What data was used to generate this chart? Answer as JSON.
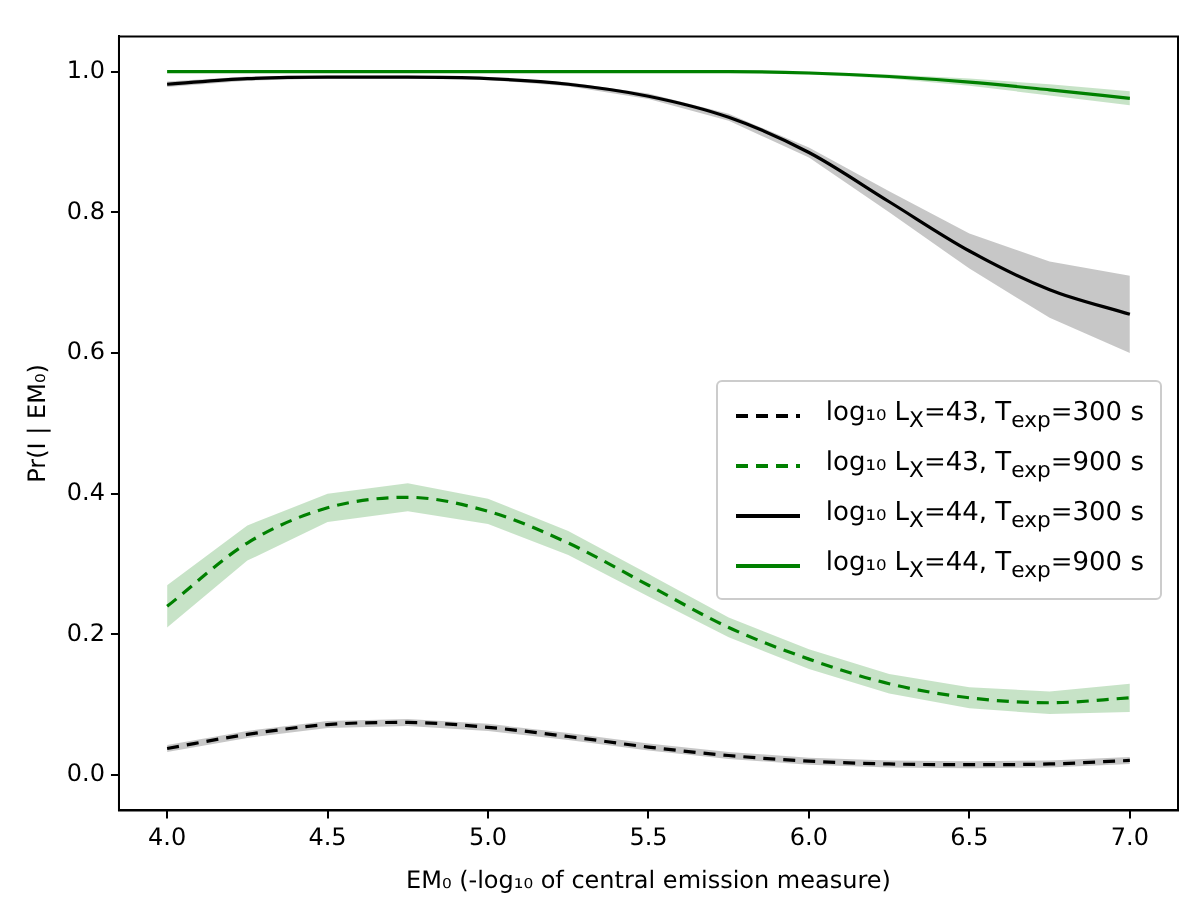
{
  "chart_data": {
    "type": "line",
    "xlabel": "EM₀ (-log₁₀ of central emission measure)",
    "ylabel": "Pr(I | EM₀)",
    "x": [
      4.0,
      4.25,
      4.5,
      4.75,
      5.0,
      5.25,
      5.5,
      5.75,
      6.0,
      6.25,
      6.5,
      6.75,
      7.0
    ],
    "series": [
      {
        "name": "log₁₀ L$_{X}$=43, T$_{exp}$=300 s",
        "color": "#000000",
        "line_style": "dashed",
        "values": [
          0.038,
          0.058,
          0.072,
          0.075,
          0.068,
          0.055,
          0.04,
          0.028,
          0.02,
          0.016,
          0.015,
          0.016,
          0.021
        ],
        "lower": [
          0.033,
          0.053,
          0.067,
          0.07,
          0.063,
          0.05,
          0.035,
          0.023,
          0.015,
          0.011,
          0.01,
          0.011,
          0.016
        ],
        "upper": [
          0.043,
          0.063,
          0.077,
          0.08,
          0.073,
          0.06,
          0.045,
          0.033,
          0.025,
          0.021,
          0.02,
          0.021,
          0.026
        ]
      },
      {
        "name": "log₁₀ L$_{X}$=43, T$_{exp}$=900 s",
        "color": "#008000",
        "line_style": "dashed",
        "values": [
          0.24,
          0.33,
          0.38,
          0.395,
          0.375,
          0.33,
          0.27,
          0.21,
          0.165,
          0.13,
          0.11,
          0.103,
          0.11
        ],
        "lower": [
          0.21,
          0.305,
          0.36,
          0.375,
          0.357,
          0.313,
          0.254,
          0.196,
          0.151,
          0.116,
          0.095,
          0.087,
          0.09
        ],
        "upper": [
          0.27,
          0.355,
          0.4,
          0.415,
          0.393,
          0.347,
          0.286,
          0.224,
          0.179,
          0.144,
          0.125,
          0.119,
          0.13
        ]
      },
      {
        "name": "log₁₀ L$_{X}$=44, T$_{exp}$=300 s",
        "color": "#000000",
        "line_style": "solid",
        "values": [
          0.982,
          0.99,
          0.992,
          0.992,
          0.99,
          0.982,
          0.965,
          0.935,
          0.885,
          0.815,
          0.745,
          0.69,
          0.655
        ],
        "lower": [
          0.978,
          0.987,
          0.99,
          0.99,
          0.988,
          0.979,
          0.961,
          0.93,
          0.878,
          0.8,
          0.72,
          0.65,
          0.6
        ],
        "upper": [
          0.986,
          0.993,
          0.994,
          0.994,
          0.992,
          0.985,
          0.969,
          0.94,
          0.892,
          0.83,
          0.77,
          0.73,
          0.71
        ]
      },
      {
        "name": "log₁₀ L$_{X}$=44, T$_{exp}$=900 s",
        "color": "#008000",
        "line_style": "solid",
        "values": [
          1.0,
          1.0,
          1.0,
          1.0,
          1.0,
          1.0,
          1.0,
          1.0,
          0.998,
          0.993,
          0.985,
          0.974,
          0.962
        ],
        "lower": [
          0.999,
          0.999,
          0.999,
          0.999,
          0.999,
          0.999,
          0.999,
          0.998,
          0.996,
          0.99,
          0.98,
          0.966,
          0.952
        ],
        "upper": [
          1.0,
          1.0,
          1.0,
          1.0,
          1.0,
          1.0,
          1.0,
          1.0,
          1.0,
          0.996,
          0.99,
          0.982,
          0.972
        ]
      }
    ],
    "xlim": [
      3.85,
      7.15
    ],
    "ylim": [
      -0.05,
      1.05
    ],
    "xticks": [
      {
        "value": 4,
        "label": "4.0"
      },
      {
        "value": 4.5,
        "label": "4.5"
      },
      {
        "value": 5,
        "label": "5.0"
      },
      {
        "value": 5.5,
        "label": "5.5"
      },
      {
        "value": 6,
        "label": "6.0"
      },
      {
        "value": 6.5,
        "label": "6.5"
      },
      {
        "value": 7,
        "label": "7.0"
      }
    ],
    "yticks": [
      {
        "value": 0,
        "label": "0.0"
      },
      {
        "value": 0.2,
        "label": "0.2"
      },
      {
        "value": 0.4,
        "label": "0.4"
      },
      {
        "value": 0.6,
        "label": "0.6"
      },
      {
        "value": 0.8,
        "label": "0.8"
      },
      {
        "value": 1,
        "label": "1.0"
      }
    ],
    "grid": false,
    "legend": "right",
    "marker": "none"
  }
}
